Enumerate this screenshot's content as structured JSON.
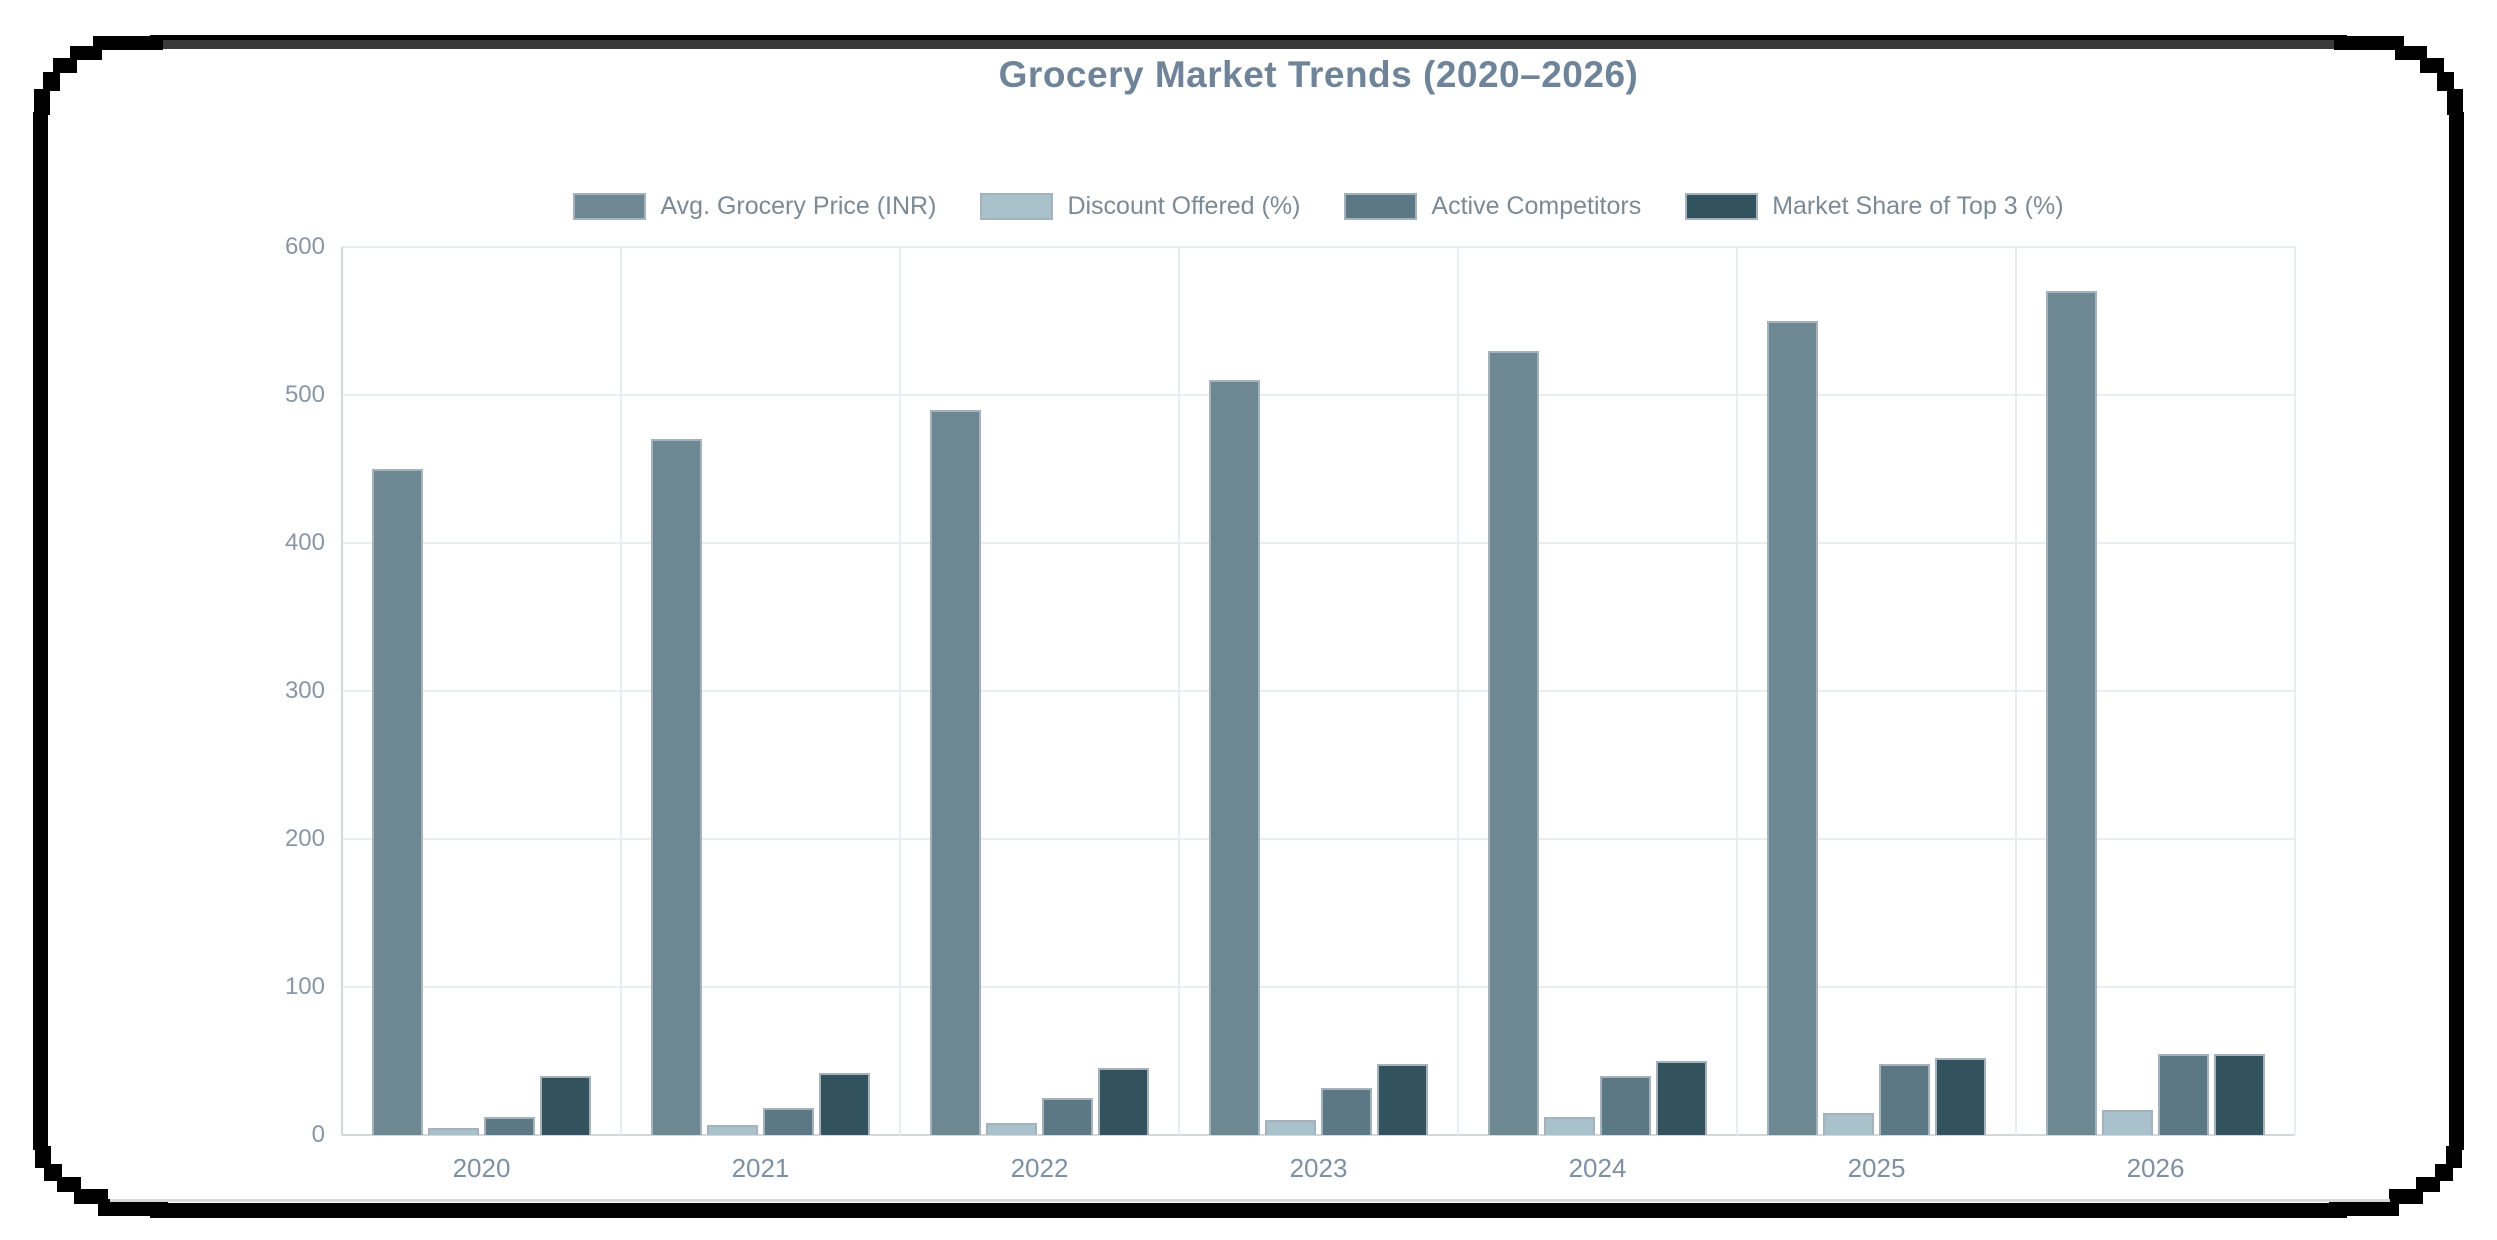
{
  "title": "Grocery Market Trends (2020–2026)",
  "chart_data": {
    "type": "bar",
    "title": "Grocery Market Trends (2020–2026)",
    "categories": [
      "2020",
      "2021",
      "2022",
      "2023",
      "2024",
      "2025",
      "2026"
    ],
    "series": [
      {
        "name": "Avg. Grocery Price (INR)",
        "color": "#6d8793",
        "values": [
          450,
          470,
          490,
          510,
          530,
          550,
          570
        ]
      },
      {
        "name": "Discount Offered (%)",
        "color": "#a9c1cb",
        "values": [
          5,
          7,
          8,
          10,
          12,
          15,
          17
        ]
      },
      {
        "name": "Active Competitors",
        "color": "#5b7884",
        "values": [
          12,
          18,
          25,
          32,
          40,
          48,
          55
        ]
      },
      {
        "name": "Market Share of Top 3 (%)",
        "color": "#32525e",
        "values": [
          40,
          42,
          45,
          48,
          50,
          52,
          55
        ]
      }
    ],
    "xlabel": "",
    "ylabel": "",
    "ylim": [
      0,
      600
    ],
    "yticks": [
      0,
      100,
      200,
      300,
      400,
      500,
      600
    ],
    "grid": true,
    "legend_position": "top",
    "title_color": "#6f8499",
    "axis_text_color": "#8a96a4",
    "x_label_color": "#7e90a3",
    "legend_text_color": "#7c8a95",
    "grid_color": "#eaedf0",
    "axis_line_color": "#d2d8dd",
    "bar_border_color": "#a6b2bb"
  }
}
